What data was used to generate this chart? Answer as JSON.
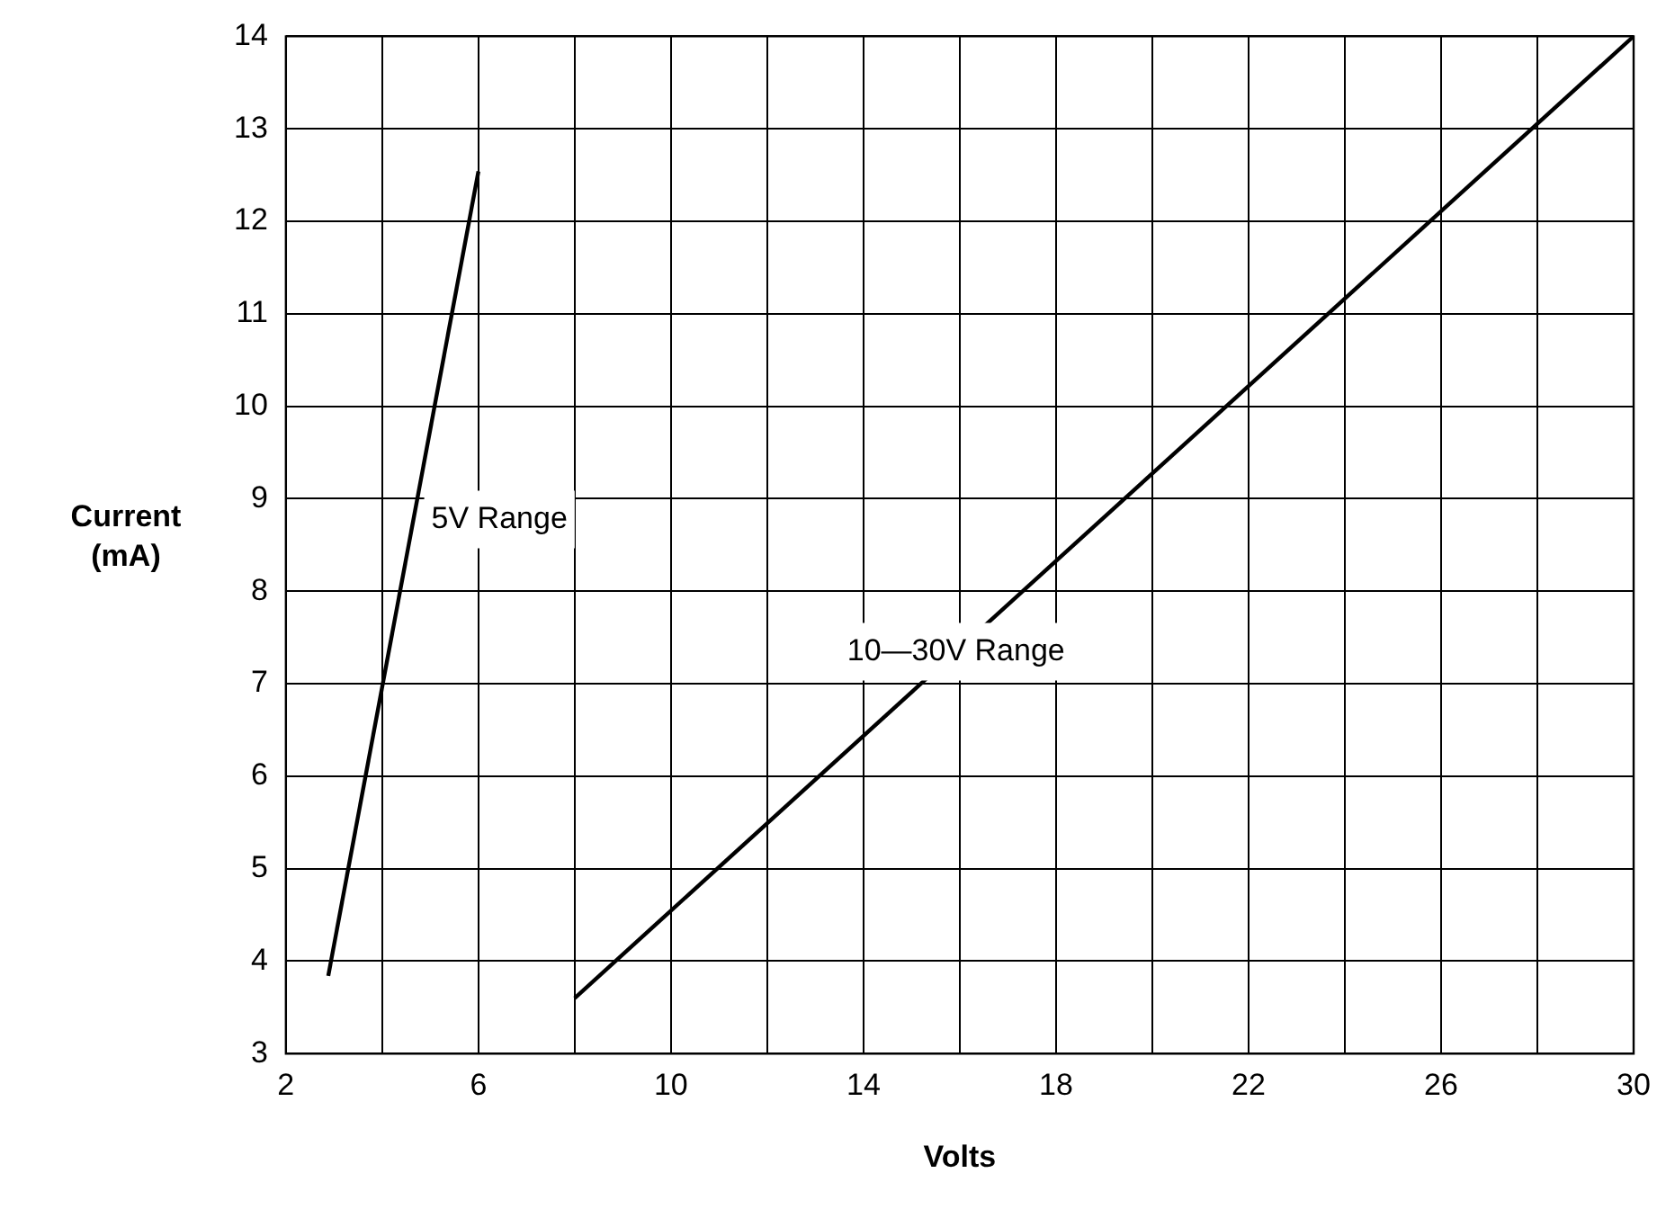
{
  "chart_data": {
    "type": "line",
    "xlabel": "Volts",
    "ylabel": "Current (mA)",
    "xlim": [
      2,
      30
    ],
    "xticks": [
      2,
      {
        "value": 4,
        "label": null
      },
      6,
      {
        "value": 8,
        "label": null
      },
      10,
      {
        "value": 12,
        "label": null
      },
      14,
      {
        "value": 16,
        "label": null
      },
      18,
      {
        "value": 20,
        "label": null
      },
      22,
      {
        "value": 24,
        "label": null
      },
      26,
      {
        "value": 28,
        "label": null
      },
      30
    ],
    "ylim": [
      3,
      14
    ],
    "yticks": [
      3,
      4,
      5,
      6,
      7,
      8,
      9,
      10,
      11,
      12,
      13,
      14
    ],
    "series": [
      {
        "name": "5V Range",
        "color": "#000000",
        "x": [
          2.88,
          6
        ],
        "values": [
          3.84,
          12.54
        ]
      },
      {
        "name": "10—30V Range",
        "color": "#000000",
        "x": [
          8,
          30
        ],
        "values": [
          3.6,
          14
        ]
      }
    ],
    "grid": true,
    "legend": false,
    "marker": "none",
    "line_style": "solid"
  }
}
